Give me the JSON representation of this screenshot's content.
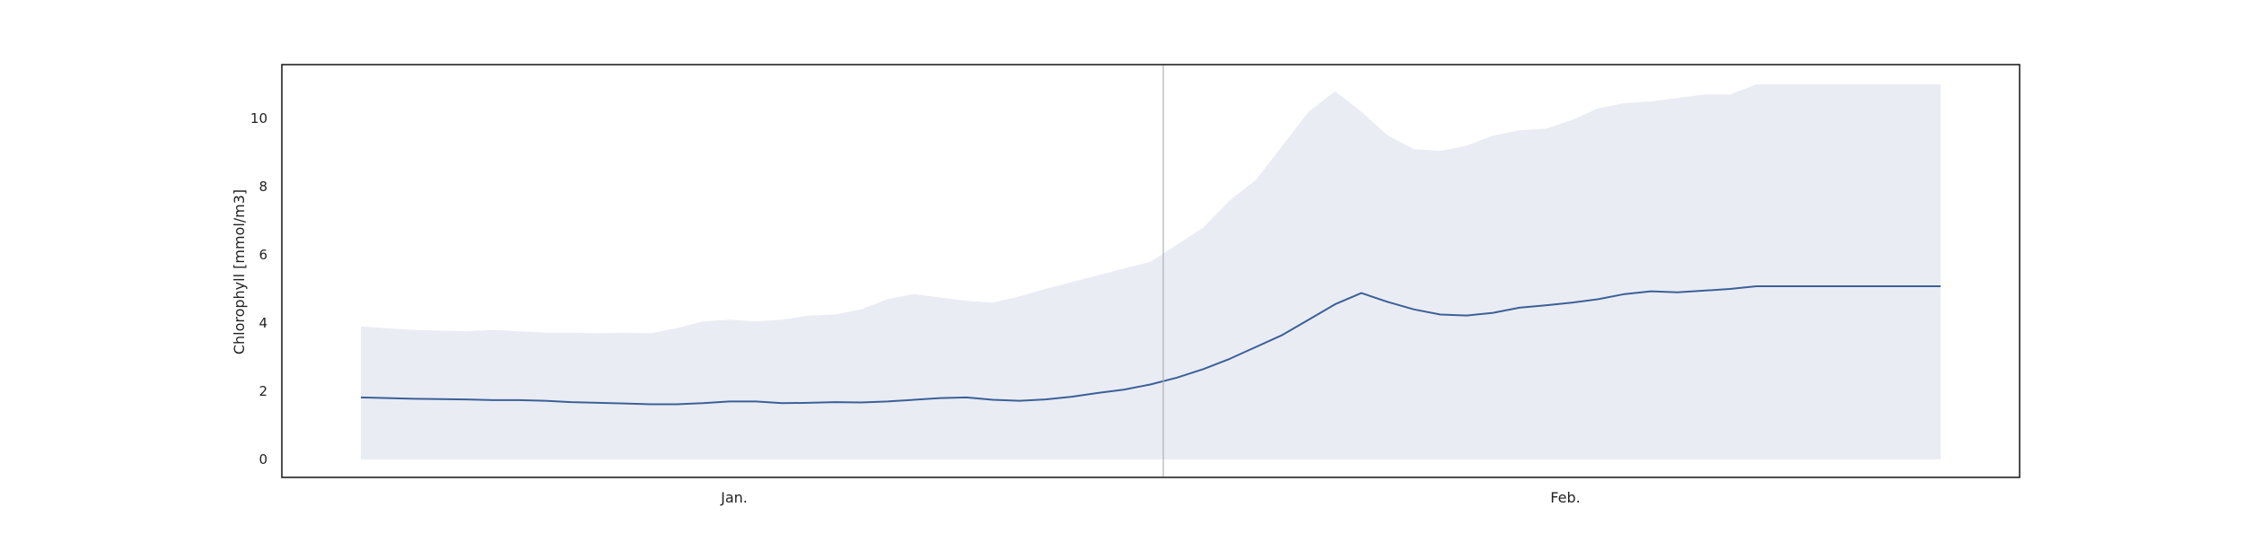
{
  "chart_data": {
    "type": "area",
    "title": "",
    "xlabel": "",
    "ylabel": "Chlorophyll [mmol/m3]",
    "ylim": [
      -0.5,
      11.7
    ],
    "yticks": [
      0,
      2,
      4,
      6,
      8,
      10
    ],
    "x_tick_labels": [
      "Jan.",
      "Feb."
    ],
    "grid": false,
    "series": [
      {
        "kind": "band",
        "lower": [
          0,
          0,
          0,
          0,
          0,
          0,
          0,
          0,
          0,
          0,
          0,
          0,
          0,
          0,
          0,
          0,
          0,
          0,
          0,
          0,
          0,
          0,
          0,
          0,
          0,
          0,
          0,
          0,
          0,
          0,
          0,
          0,
          0,
          0,
          0,
          0,
          0,
          0,
          0,
          0,
          0,
          0,
          0,
          0,
          0,
          0,
          0,
          0,
          0,
          0,
          0,
          0,
          0,
          0,
          0,
          0,
          0,
          0,
          0,
          0,
          0
        ],
        "upper": [
          3.9,
          3.85,
          3.8,
          3.78,
          3.76,
          3.8,
          3.76,
          3.72,
          3.72,
          3.7,
          3.72,
          3.7,
          3.85,
          4.05,
          4.1,
          4.05,
          4.1,
          4.22,
          4.25,
          4.4,
          4.7,
          4.85,
          4.75,
          4.65,
          4.6,
          4.78,
          5.0,
          5.2,
          5.4,
          5.6,
          5.8,
          6.3,
          6.8,
          7.6,
          8.2,
          9.2,
          10.2,
          10.8,
          10.2,
          9.5,
          9.1,
          9.05,
          9.2,
          9.5,
          9.65,
          9.7,
          9.95,
          10.3,
          10.45,
          10.5,
          10.6,
          10.7,
          10.7,
          11.0,
          11.0,
          11.0,
          11.0,
          11.0,
          11.0,
          11.0,
          11.0
        ]
      },
      {
        "kind": "line",
        "values": [
          1.82,
          1.8,
          1.78,
          1.77,
          1.76,
          1.74,
          1.74,
          1.72,
          1.68,
          1.66,
          1.64,
          1.62,
          1.62,
          1.65,
          1.7,
          1.7,
          1.65,
          1.66,
          1.68,
          1.67,
          1.7,
          1.75,
          1.8,
          1.82,
          1.75,
          1.72,
          1.76,
          1.84,
          1.95,
          2.05,
          2.2,
          2.4,
          2.65,
          2.95,
          3.3,
          3.65,
          4.1,
          4.55,
          4.88,
          4.62,
          4.4,
          4.25,
          4.22,
          4.3,
          4.45,
          4.52,
          4.6,
          4.7,
          4.85,
          4.93,
          4.9,
          4.95,
          5.0,
          5.08,
          5.08,
          5.08,
          5.08,
          5.08,
          5.08,
          5.08,
          5.08
        ]
      }
    ]
  },
  "colors": {
    "band": "#eaecf4",
    "line": "#3b6097",
    "axis": "#222222",
    "vline": "#b0b0b0"
  }
}
